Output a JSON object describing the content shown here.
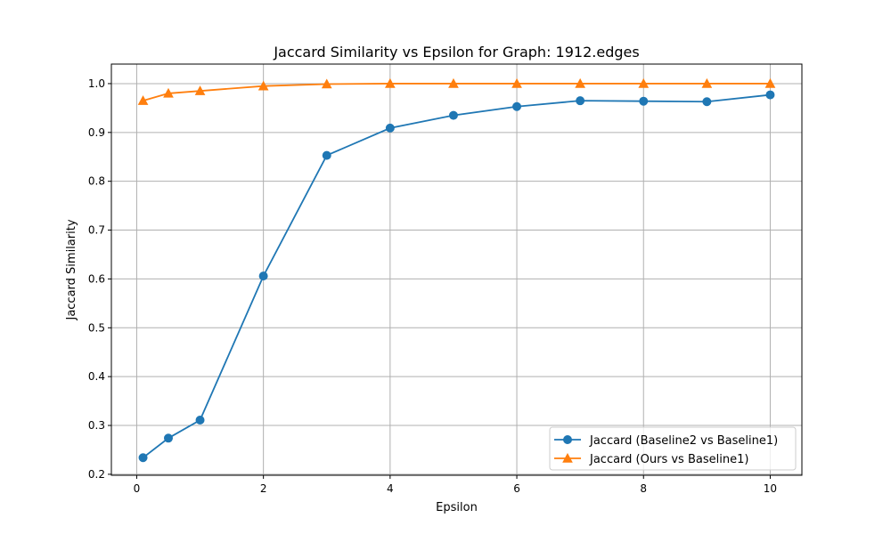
{
  "chart_data": {
    "type": "line",
    "title": "Jaccard Similarity vs Epsilon for Graph: 1912.edges",
    "xlabel": "Epsilon",
    "ylabel": "Jaccard Similarity",
    "xlim": [
      -0.4,
      10.5
    ],
    "ylim": [
      0.198,
      1.04
    ],
    "xticks": [
      0,
      2,
      4,
      6,
      8,
      10
    ],
    "yticks": [
      0.2,
      0.3,
      0.4,
      0.5,
      0.6,
      0.7,
      0.8,
      0.9,
      1.0
    ],
    "xtick_labels": [
      "0",
      "2",
      "4",
      "6",
      "8",
      "10"
    ],
    "ytick_labels": [
      "0.2",
      "0.3",
      "0.4",
      "0.5",
      "0.6",
      "0.7",
      "0.8",
      "0.9",
      "1.0"
    ],
    "grid": true,
    "legend_position": "lower-right",
    "x": [
      0.1,
      0.5,
      1,
      2,
      3,
      4,
      5,
      6,
      7,
      8,
      9,
      10
    ],
    "series": [
      {
        "name": "Jaccard (Baseline2 vs Baseline1)",
        "color": "#1f77b4",
        "marker": "circle",
        "values": [
          0.234,
          0.274,
          0.311,
          0.606,
          0.853,
          0.909,
          0.935,
          0.953,
          0.965,
          0.964,
          0.963,
          0.977
        ]
      },
      {
        "name": "Jaccard (Ours vs Baseline1)",
        "color": "#ff7f0e",
        "marker": "triangle",
        "values": [
          0.965,
          0.98,
          0.985,
          0.995,
          0.999,
          1.0,
          1.0,
          1.0,
          1.0,
          1.0,
          1.0,
          1.0
        ]
      }
    ]
  }
}
